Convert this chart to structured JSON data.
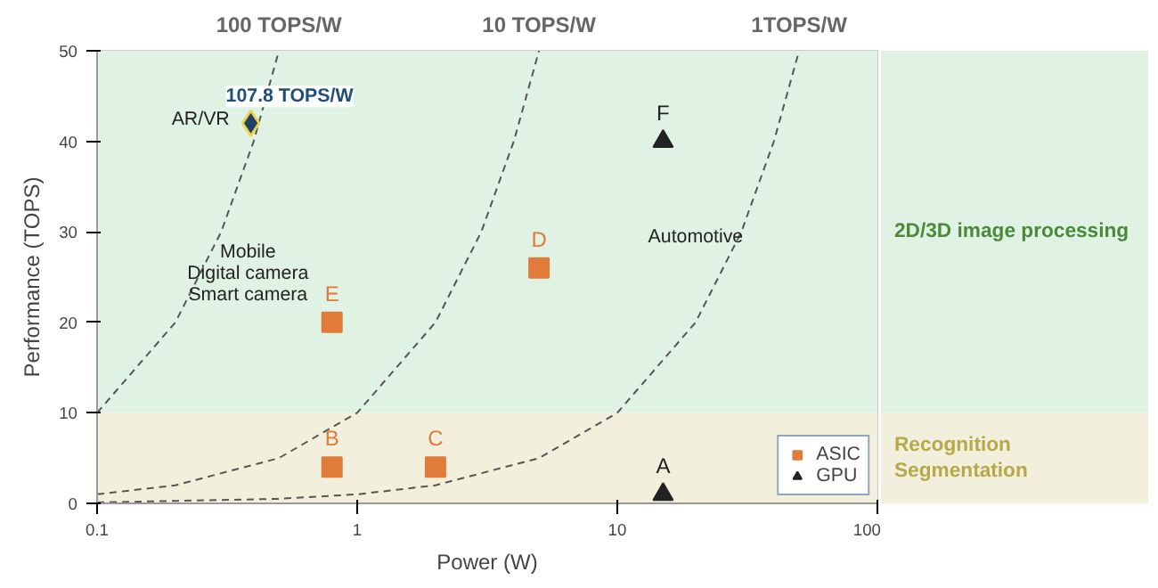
{
  "chart_data": {
    "type": "scatter",
    "xlabel": "Power (W)",
    "ylabel": "Performance (TOPS)",
    "log": "x",
    "xlim": [
      0.1,
      100
    ],
    "xticks": [
      0.1,
      1,
      10,
      100
    ],
    "ylim": [
      0,
      50
    ],
    "yticks": [
      0,
      10,
      20,
      30,
      40,
      50
    ],
    "grid": true,
    "legend": "bottom right",
    "series": [
      {
        "name": "100 TOPS/W",
        "type": "line",
        "line_style": "dashed",
        "color": "#555555",
        "x": [
          0.1,
          0.2,
          0.3,
          0.4,
          0.5
        ],
        "values": [
          10,
          20,
          30,
          40,
          50
        ]
      },
      {
        "name": "10 TOPS/W",
        "type": "line",
        "line_style": "dashed",
        "color": "#555555",
        "x": [
          0.1,
          0.2,
          0.5,
          1,
          2,
          3,
          4,
          5
        ],
        "values": [
          1,
          2,
          5,
          10,
          20,
          30,
          40,
          50
        ]
      },
      {
        "name": "1TOPS/W",
        "type": "line",
        "line_style": "dashed",
        "color": "#555555",
        "x": [
          0.1,
          0.5,
          1,
          2,
          5,
          10,
          20,
          30,
          40,
          50
        ],
        "values": [
          0.1,
          0.5,
          1,
          2,
          5,
          10,
          20,
          30,
          40,
          50
        ]
      },
      {
        "name": "ASIC",
        "marker": "square",
        "color": "#e07b39",
        "x": [
          0.8,
          2,
          5,
          0.8
        ],
        "values": [
          4,
          4,
          26,
          20
        ]
      },
      {
        "name": "GPU",
        "marker": "triangle",
        "color": "#222222",
        "x": [
          15,
          15
        ],
        "values": [
          1,
          40
        ]
      },
      {
        "marker": "diamond",
        "color": "#1f3f66",
        "x": [
          0.39
        ],
        "values": [
          42
        ]
      }
    ],
    "bands": [
      {
        "axis": "y",
        "from": 0,
        "to": 10,
        "label": "Recognition\nSegmentation",
        "color": "#f2efdc"
      },
      {
        "axis": "y",
        "from": 10,
        "to": 50,
        "label": "2D/3D image processing",
        "color": "#dff2e3"
      }
    ],
    "annotations": [
      {
        "text": "A",
        "x": 15,
        "y": 1
      },
      {
        "text": "B",
        "x": 0.8,
        "y": 4
      },
      {
        "text": "C",
        "x": 2,
        "y": 4
      },
      {
        "text": "D",
        "x": 5,
        "y": 26
      },
      {
        "text": "E",
        "x": 0.8,
        "y": 20
      },
      {
        "text": "F",
        "x": 15,
        "y": 40
      },
      {
        "text": "107.8 TOPS/W",
        "x": 0.39,
        "y": 42
      },
      "AR/VR",
      "Mobile\nDigital camera\nSmart camera",
      "Automotive"
    ]
  }
}
